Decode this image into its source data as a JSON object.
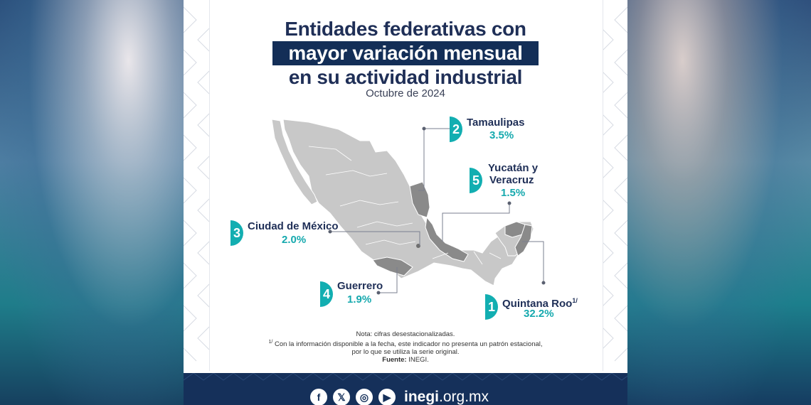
{
  "title": {
    "line1": "Entidades federativas con",
    "line2": "mayor variación mensual",
    "line3": "en su actividad industrial"
  },
  "subtitle": "Octubre de 2024",
  "callouts": [
    {
      "rank": "1",
      "state": "Quintana Roo",
      "note_mark": "1/",
      "value": "32.2%"
    },
    {
      "rank": "2",
      "state": "Tamaulipas",
      "value": "3.5%"
    },
    {
      "rank": "3",
      "state": "Ciudad de México",
      "value": "2.0%"
    },
    {
      "rank": "4",
      "state": "Guerrero",
      "value": "1.9%"
    },
    {
      "rank": "5",
      "state_line1": "Yucatán y",
      "state_line2": "Veracruz",
      "value": "1.5%"
    }
  ],
  "notes": {
    "line1": "Nota: cifras desestacionalizadas.",
    "line2_mark": "1/",
    "line2": "Con la información disponible a la fecha, este indicador no presenta un patrón estacional,",
    "line3": "por lo que se utiliza la serie original.",
    "source_label": "Fuente:",
    "source": "INEGI."
  },
  "footer": {
    "social": [
      "facebook-icon",
      "x-icon",
      "instagram-icon",
      "youtube-icon"
    ],
    "site_bold": "inegi",
    "site_rest": ".org.mx"
  },
  "colors": {
    "navy": "#132e57",
    "teal": "#12aeb1",
    "map_base": "#c8c8c8",
    "map_highlight": "#8a8a8a"
  }
}
